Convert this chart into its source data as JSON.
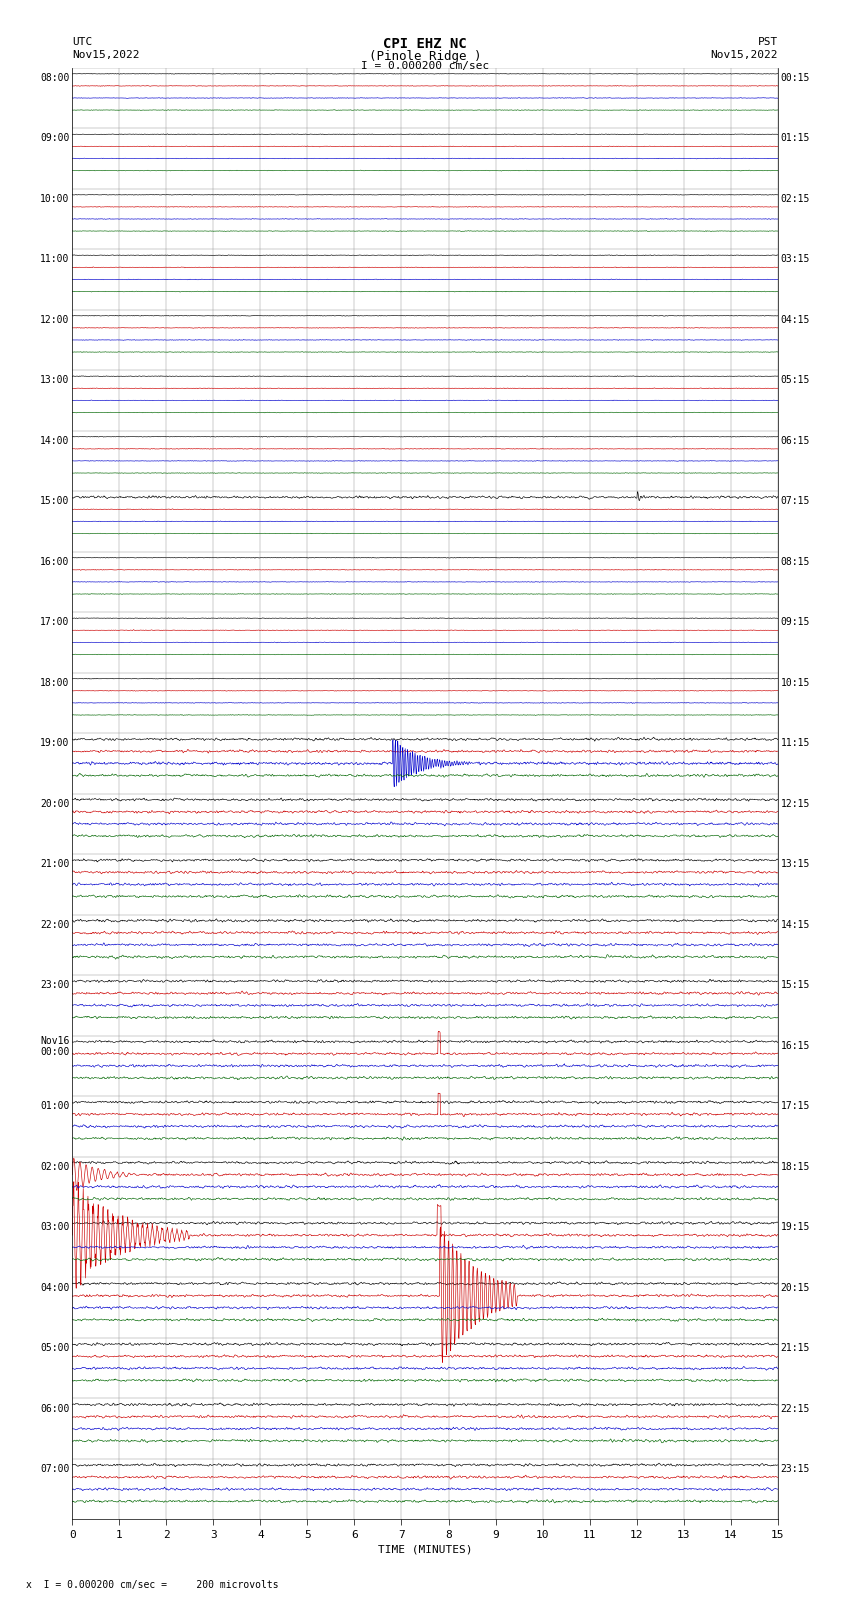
{
  "title_line1": "CPI EHZ NC",
  "title_line2": "(Pinole Ridge )",
  "title_line3": "I = 0.000200 cm/sec",
  "left_header_line1": "UTC",
  "left_header_line2": "Nov15,2022",
  "right_header_line1": "PST",
  "right_header_line2": "Nov15,2022",
  "xlabel": "TIME (MINUTES)",
  "footer": "x  I = 0.000200 cm/sec =     200 microvolts",
  "bg_color": "#ffffff",
  "grid_color": "#999999",
  "trace_colors": [
    "#000000",
    "#cc0000",
    "#0000cc",
    "#006600"
  ],
  "utc_labels": [
    "08:00",
    "09:00",
    "10:00",
    "11:00",
    "12:00",
    "13:00",
    "14:00",
    "15:00",
    "16:00",
    "17:00",
    "18:00",
    "19:00",
    "20:00",
    "21:00",
    "22:00",
    "23:00",
    "Nov16\n00:00",
    "01:00",
    "02:00",
    "03:00",
    "04:00",
    "05:00",
    "06:00",
    "07:00"
  ],
  "pst_labels": [
    "00:15",
    "01:15",
    "02:15",
    "03:15",
    "04:15",
    "05:15",
    "06:15",
    "07:15",
    "08:15",
    "09:15",
    "10:15",
    "11:15",
    "12:15",
    "13:15",
    "14:15",
    "15:15",
    "16:15",
    "17:15",
    "18:15",
    "19:15",
    "20:15",
    "21:15",
    "22:15",
    "23:15"
  ],
  "num_rows": 24,
  "num_traces_per_row": 4,
  "minutes": 15,
  "seed": 42
}
